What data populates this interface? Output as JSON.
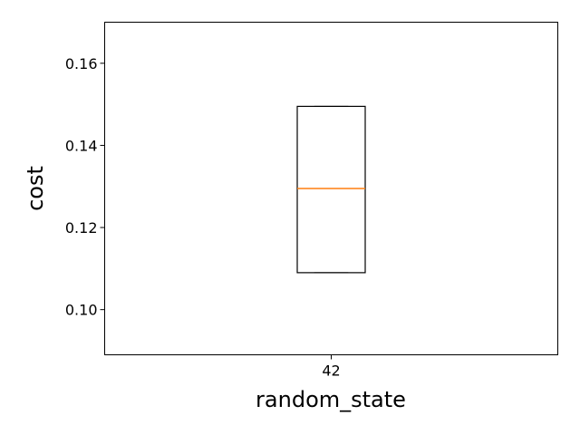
{
  "chart_data": {
    "type": "box",
    "title": "",
    "xlabel": "random_state",
    "ylabel": "cost",
    "ylim": [
      0.089,
      0.17
    ],
    "yticks": [
      0.1,
      0.12,
      0.14,
      0.16
    ],
    "ytick_labels": [
      "0.10",
      "0.12",
      "0.14",
      "0.16"
    ],
    "categories": [
      "42"
    ],
    "boxes": [
      {
        "category": "42",
        "q1": 0.109,
        "median": 0.1295,
        "q3": 0.1495,
        "whisker_low": 0.109,
        "whisker_high": 0.1495
      }
    ],
    "grid": false,
    "colors": {
      "box": "#000000",
      "median": "#ff7f0e",
      "axes": "#000000"
    }
  }
}
